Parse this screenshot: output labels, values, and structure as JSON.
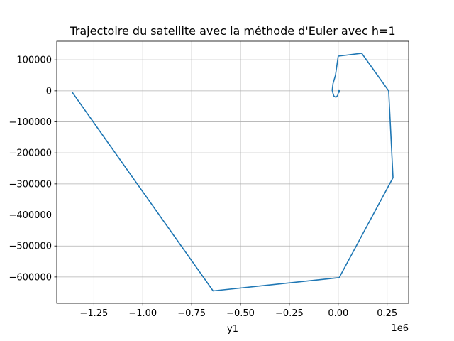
{
  "chart_data": {
    "type": "line",
    "title": "Trajectoire du satellite avec la méthode d'Euler avec h=1",
    "xlabel": "y1",
    "ylabel": "",
    "x_offset_label": "1e6",
    "xlim": [
      -1.44,
      0.36
    ],
    "ylim": [
      -685000,
      160000
    ],
    "x_scale_multiplier": 1000000,
    "grid": true,
    "x_ticks": [
      {
        "value": -1.25,
        "label": "−1.25"
      },
      {
        "value": -1.0,
        "label": "−1.00"
      },
      {
        "value": -0.75,
        "label": "−0.75"
      },
      {
        "value": -0.5,
        "label": "−0.50"
      },
      {
        "value": -0.25,
        "label": "−0.25"
      },
      {
        "value": 0.0,
        "label": "0.00"
      },
      {
        "value": 0.25,
        "label": "0.25"
      }
    ],
    "y_ticks": [
      {
        "value": 100000,
        "label": "100000"
      },
      {
        "value": 0,
        "label": "0"
      },
      {
        "value": -100000,
        "label": "−100000"
      },
      {
        "value": -200000,
        "label": "−200000"
      },
      {
        "value": -300000,
        "label": "−300000"
      },
      {
        "value": -400000,
        "label": "−400000"
      },
      {
        "value": -500000,
        "label": "−500000"
      },
      {
        "value": -600000,
        "label": "−600000"
      }
    ],
    "series": [
      {
        "color": "#1f77b4",
        "x": [
          0.005,
          0.007,
          0.004,
          -0.003,
          -0.012,
          -0.022,
          -0.027,
          -0.031,
          -0.027,
          -0.014,
          0.0,
          0.12,
          0.258,
          0.28,
          0.005,
          -0.64,
          -1.36
        ],
        "y": [
          -4000,
          0,
          3000,
          -15000,
          -21000,
          -17000,
          -8000,
          2000,
          23000,
          50000,
          112000,
          121000,
          0,
          -280000,
          -602000,
          -645000,
          -5000
        ]
      }
    ]
  }
}
